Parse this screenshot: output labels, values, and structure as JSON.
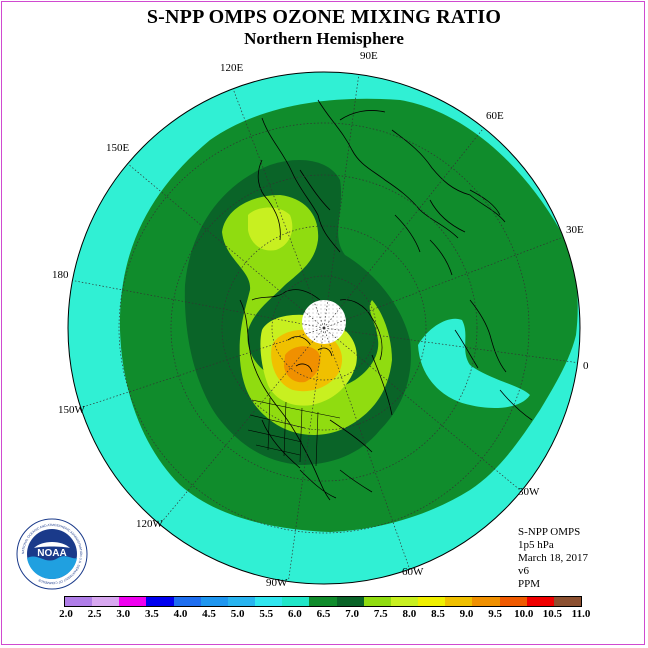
{
  "title": "S-NPP OMPS OZONE MIXING RATIO",
  "subtitle": "Northern Hemisphere",
  "longitude_labels": [
    "90E",
    "60E",
    "30E",
    "0",
    "30W",
    "60W",
    "90W",
    "120W",
    "150W",
    "180",
    "150E",
    "120E"
  ],
  "info": {
    "instrument": "S-NPP OMPS",
    "level": "1p5 hPa",
    "date": "March 18, 2017",
    "version": "v6",
    "units": "PPM"
  },
  "logo": {
    "name": "noaa-logo",
    "text": "NOAA",
    "ring_text": "NATIONAL OCEANIC AND ATMOSPHERIC ADMINISTRATION U.S. DEPARTMENT OF COMMERCE"
  },
  "colorbar": {
    "ticks": [
      "2.0",
      "2.5",
      "3.0",
      "3.5",
      "4.0",
      "4.5",
      "5.0",
      "5.5",
      "6.0",
      "6.5",
      "7.0",
      "7.5",
      "8.0",
      "8.5",
      "9.0",
      "9.5",
      "10.0",
      "10.5",
      "11.0"
    ],
    "colors": [
      "#b07ee8",
      "#d8a8f0",
      "#f000f0",
      "#0000f0",
      "#1e6ef0",
      "#1e96f0",
      "#28b4f0",
      "#30e6f0",
      "#20e6c8",
      "#108c2c",
      "#0a6428",
      "#90dc10",
      "#c8f020",
      "#f0f000",
      "#f0c000",
      "#f09000",
      "#f05a00",
      "#f00000",
      "#8c5030"
    ]
  },
  "map_colors": {
    "aqua": "#30f0d4",
    "green": "#108c2c",
    "dark_green": "#0a6428",
    "lime": "#90dc10",
    "yellow": "#c8f020",
    "orange_yellow": "#f0c000",
    "orange": "#f09000",
    "polar_gap": "#ffffff"
  }
}
